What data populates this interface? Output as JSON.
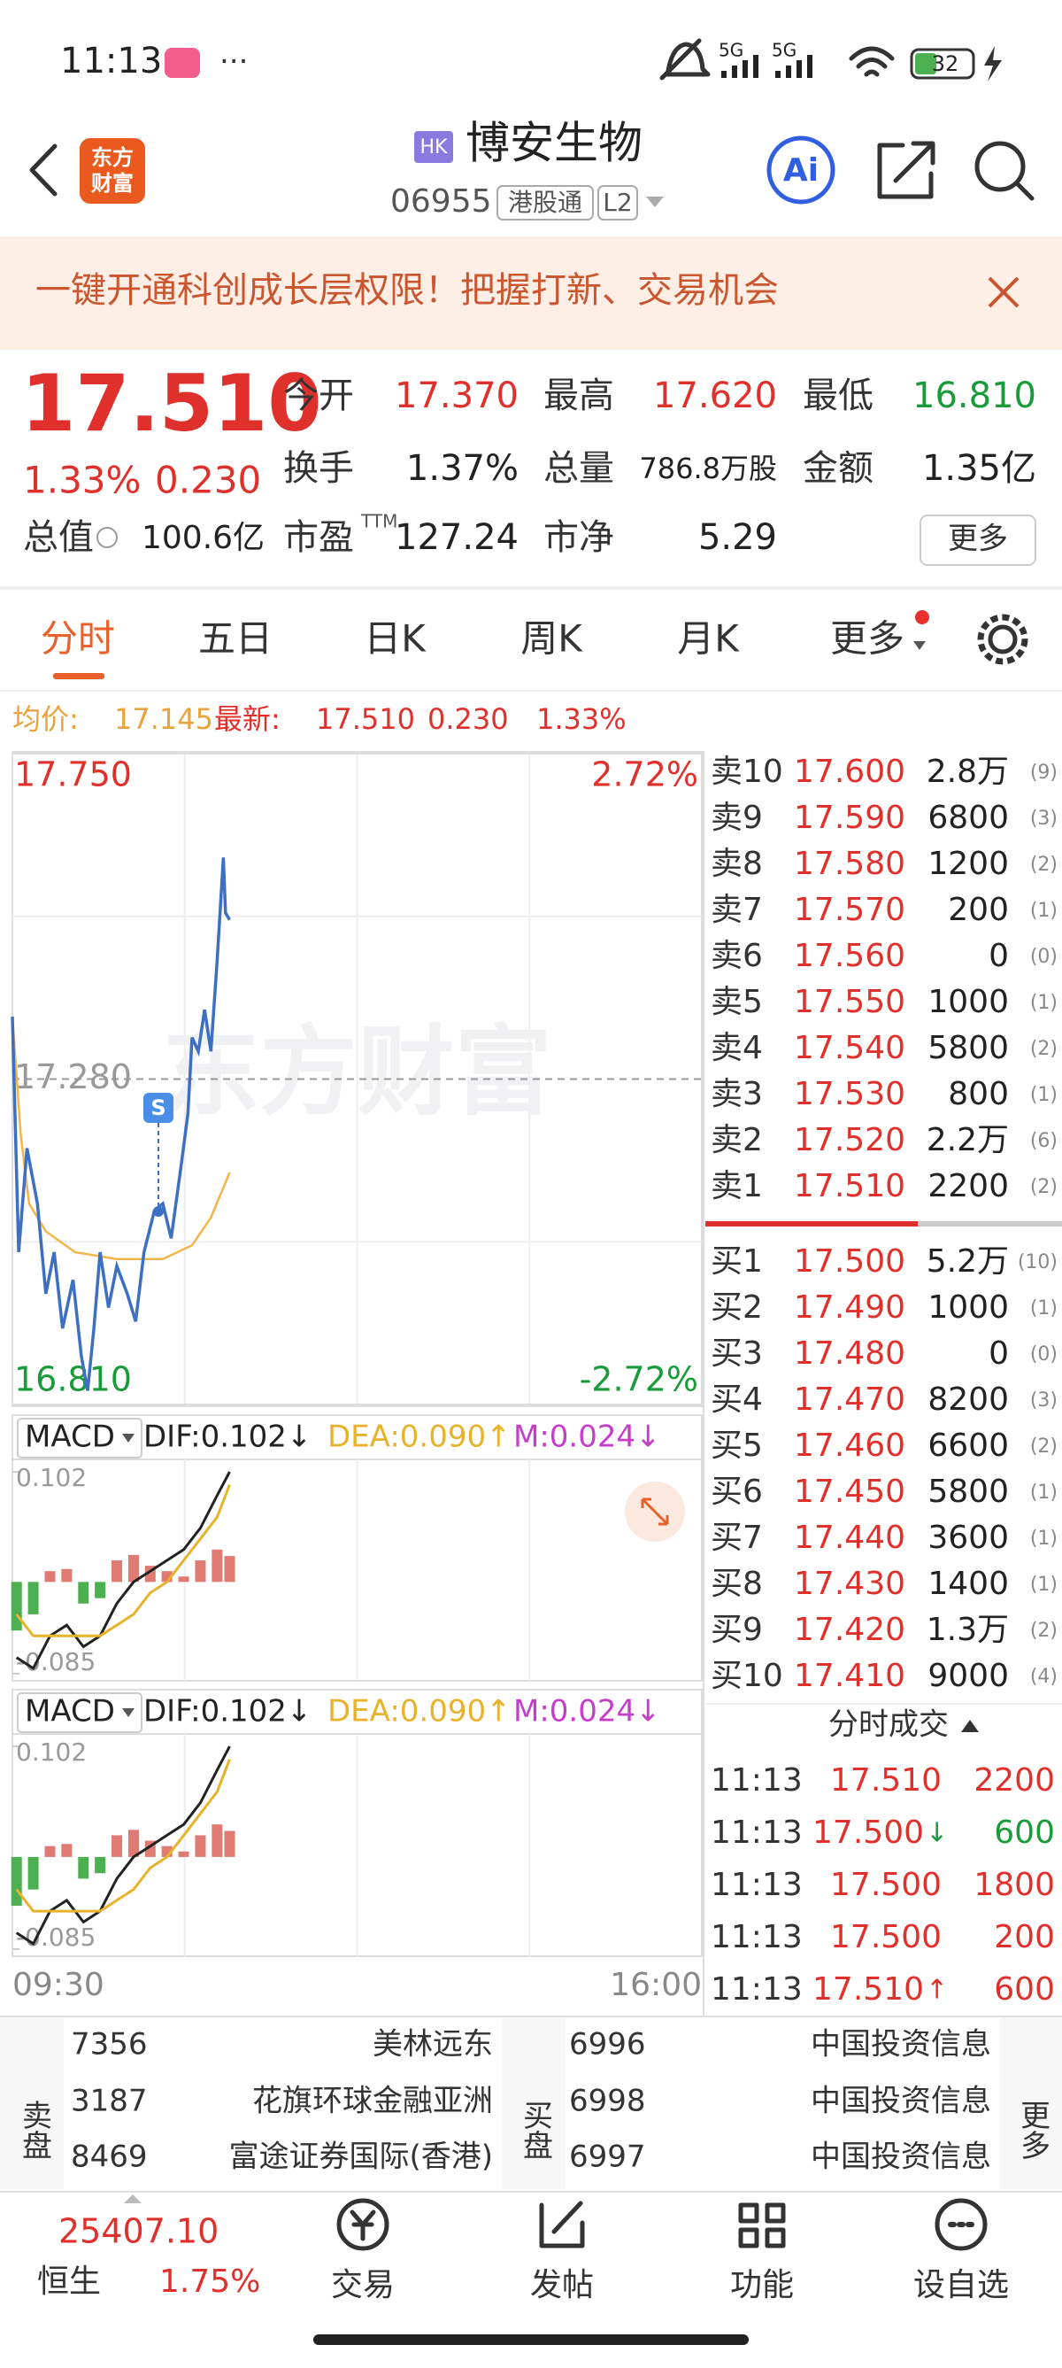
{
  "status_bar": {
    "time": "11:13",
    "network": [
      "5G",
      "5G"
    ],
    "battery": "32"
  },
  "header": {
    "logo": [
      "东方",
      "财富"
    ],
    "market_badge": "HK",
    "title": "博安生物",
    "code": "06955",
    "connect": "港股通",
    "level": "L2",
    "ai": "Ai"
  },
  "banner": {
    "text": "一键开通科创成长层权限！把握打新、交易机会"
  },
  "quote": {
    "price": "17.510",
    "change_pct": "1.33%",
    "change": "0.230",
    "total_label": "总值",
    "total": "100.6亿",
    "ttm": "TTM",
    "more": "更多",
    "stats": [
      {
        "label": "今开",
        "value": "17.370",
        "color": "#e0302c"
      },
      {
        "label": "最高",
        "value": "17.620",
        "color": "#e0302c"
      },
      {
        "label": "最低",
        "value": "16.810",
        "color": "#1a9b3a"
      },
      {
        "label": "换手",
        "value": "1.37%",
        "color": "#222"
      },
      {
        "label": "总量",
        "value": "786.8万股",
        "color": "#222"
      },
      {
        "label": "金额",
        "value": "1.35亿",
        "color": "#222"
      },
      {
        "label": "市盈",
        "value": "127.24",
        "color": "#222"
      },
      {
        "label": "市净",
        "value": "5.29",
        "color": "#222"
      }
    ]
  },
  "tabs": {
    "items": [
      "分时",
      "五日",
      "日K",
      "周K",
      "月K",
      "更多"
    ],
    "active": 0
  },
  "info": {
    "avg_label": "均价:",
    "avg": "17.145",
    "last_label": "最新:",
    "last": "17.510",
    "change": "0.230",
    "change_pct": "1.33%"
  },
  "chart_data": [
    {
      "type": "line",
      "watermark": "东方财富",
      "marker": "S",
      "xlim": [
        0,
        330
      ],
      "xticks": [
        {
          "value": 0,
          "label": "09:30"
        },
        {
          "value": 330,
          "label": "16:00"
        }
      ],
      "ylim": [
        16.81,
        17.75
      ],
      "yticks": [
        {
          "value": 17.75,
          "label": "17.750"
        },
        {
          "value": 17.28,
          "label": "17.280"
        },
        {
          "value": 16.81,
          "label": "16.810"
        }
      ],
      "y2lim": [
        -2.72,
        2.72
      ],
      "y2ticks": [
        {
          "value": 2.72,
          "label": "2.72%"
        },
        {
          "value": -2.72,
          "label": "-2.72%"
        }
      ],
      "series": [
        {
          "color": "#3d6fc2",
          "x": [
            0,
            3,
            7,
            12,
            16,
            20,
            24,
            29,
            33,
            36,
            39,
            42,
            46,
            50,
            55,
            59,
            63,
            68,
            72,
            76,
            81,
            84,
            86,
            89,
            92,
            95,
            98,
            101,
            102,
            104
          ],
          "values": [
            17.37,
            17.03,
            17.18,
            17.1,
            16.97,
            17.03,
            16.92,
            16.99,
            16.88,
            16.83,
            16.92,
            17.03,
            16.95,
            17.01,
            16.97,
            16.93,
            17.03,
            17.09,
            17.1,
            17.05,
            17.16,
            17.23,
            17.34,
            17.32,
            17.38,
            17.32,
            17.45,
            17.6,
            17.52,
            17.51
          ]
        },
        {
          "color": "#f2b54a",
          "x": [
            0,
            4,
            8,
            16,
            30,
            50,
            72,
            86,
            95,
            104
          ],
          "values": [
            17.37,
            17.2,
            17.1,
            17.06,
            17.03,
            17.02,
            17.02,
            17.04,
            17.08,
            17.145
          ]
        }
      ]
    },
    {
      "type": "bar",
      "indicator": "MACD",
      "labels": [
        "DIF:0.102↓",
        "DEA:0.090↑",
        "M:0.024↓"
      ],
      "xlim": [
        0,
        330
      ],
      "ylim": [
        -0.085,
        0.102
      ],
      "yticks": [
        0.102,
        -0.085
      ],
      "up_color": "#e07b74",
      "down_color": "#4caf50",
      "x": [
        2,
        10,
        18,
        26,
        34,
        42,
        50,
        58,
        66,
        74,
        82,
        90,
        98,
        104
      ],
      "series": [
        {
          "type": "bar",
          "values": [
            -0.045,
            -0.03,
            0.01,
            0.012,
            -0.02,
            -0.015,
            0.02,
            0.025,
            0.015,
            0.01,
            0.005,
            0.02,
            0.03,
            0.024
          ]
        },
        {
          "type": "line",
          "color": "#222",
          "values": [
            -0.07,
            -0.08,
            -0.05,
            -0.04,
            -0.06,
            -0.05,
            -0.02,
            0.0,
            0.01,
            0.02,
            0.03,
            0.05,
            0.08,
            0.102
          ]
        },
        {
          "type": "line",
          "color": "#e8b22a",
          "values": [
            -0.03,
            -0.05,
            -0.05,
            -0.05,
            -0.05,
            -0.05,
            -0.04,
            -0.03,
            -0.01,
            0.0,
            0.02,
            0.04,
            0.06,
            0.09
          ]
        }
      ]
    },
    {
      "type": "bar",
      "indicator": "MACD",
      "labels": [
        "DIF:0.102↓",
        "DEA:0.090↑",
        "M:0.024↓"
      ],
      "xlim": [
        0,
        330
      ],
      "ylim": [
        -0.085,
        0.102
      ],
      "yticks": [
        0.102,
        -0.085
      ],
      "up_color": "#e07b74",
      "down_color": "#4caf50",
      "x": [
        2,
        10,
        18,
        26,
        34,
        42,
        50,
        58,
        66,
        74,
        82,
        90,
        98,
        104
      ],
      "series": [
        {
          "type": "bar",
          "values": [
            -0.045,
            -0.03,
            0.01,
            0.012,
            -0.02,
            -0.015,
            0.02,
            0.025,
            0.015,
            0.01,
            0.005,
            0.02,
            0.03,
            0.024
          ]
        },
        {
          "type": "line",
          "color": "#222",
          "values": [
            -0.07,
            -0.08,
            -0.05,
            -0.04,
            -0.06,
            -0.05,
            -0.02,
            0.0,
            0.01,
            0.02,
            0.03,
            0.05,
            0.08,
            0.102
          ]
        },
        {
          "type": "line",
          "color": "#e8b22a",
          "values": [
            -0.03,
            -0.05,
            -0.05,
            -0.05,
            -0.05,
            -0.05,
            -0.04,
            -0.03,
            -0.01,
            0.0,
            0.02,
            0.04,
            0.06,
            0.09
          ]
        }
      ]
    }
  ],
  "order_book": {
    "asks": [
      {
        "label": "卖10",
        "price": "17.600",
        "volume": "2.8万",
        "count": "(9)"
      },
      {
        "label": "卖9",
        "price": "17.590",
        "volume": "6800",
        "count": "(3)"
      },
      {
        "label": "卖8",
        "price": "17.580",
        "volume": "1200",
        "count": "(2)"
      },
      {
        "label": "卖7",
        "price": "17.570",
        "volume": "200",
        "count": "(1)"
      },
      {
        "label": "卖6",
        "price": "17.560",
        "volume": "0",
        "count": "(0)"
      },
      {
        "label": "卖5",
        "price": "17.550",
        "volume": "1000",
        "count": "(1)"
      },
      {
        "label": "卖4",
        "price": "17.540",
        "volume": "5800",
        "count": "(2)"
      },
      {
        "label": "卖3",
        "price": "17.530",
        "volume": "800",
        "count": "(1)"
      },
      {
        "label": "卖2",
        "price": "17.520",
        "volume": "2.2万",
        "count": "(6)"
      },
      {
        "label": "卖1",
        "price": "17.510",
        "volume": "2200",
        "count": "(2)"
      }
    ],
    "bids": [
      {
        "label": "买1",
        "price": "17.500",
        "volume": "5.2万",
        "count": "(10)"
      },
      {
        "label": "买2",
        "price": "17.490",
        "volume": "1000",
        "count": "(1)"
      },
      {
        "label": "买3",
        "price": "17.480",
        "volume": "0",
        "count": "(0)"
      },
      {
        "label": "买4",
        "price": "17.470",
        "volume": "8200",
        "count": "(3)"
      },
      {
        "label": "买5",
        "price": "17.460",
        "volume": "6600",
        "count": "(2)"
      },
      {
        "label": "买6",
        "price": "17.450",
        "volume": "5800",
        "count": "(1)"
      },
      {
        "label": "买7",
        "price": "17.440",
        "volume": "3600",
        "count": "(1)"
      },
      {
        "label": "买8",
        "price": "17.430",
        "volume": "1400",
        "count": "(1)"
      },
      {
        "label": "买9",
        "price": "17.420",
        "volume": "1.3万",
        "count": "(2)"
      },
      {
        "label": "买10",
        "price": "17.410",
        "volume": "9000",
        "count": "(4)"
      }
    ]
  },
  "trades": {
    "title": "分时成交",
    "rows": [
      {
        "time": "11:13",
        "price": "17.510",
        "volume": "2200",
        "volume_color": "#e0302c"
      },
      {
        "time": "11:13",
        "price": "17.500",
        "arrow": "↓",
        "arrow_color": "#1a9b3a",
        "volume": "600",
        "volume_color": "#1a9b3a"
      },
      {
        "time": "11:13",
        "price": "17.500",
        "volume": "1800",
        "volume_color": "#e0302c"
      },
      {
        "time": "11:13",
        "price": "17.500",
        "volume": "200",
        "volume_color": "#e0302c"
      },
      {
        "time": "11:13",
        "price": "17.510",
        "arrow": "↑",
        "arrow_color": "#e0302c",
        "volume": "600",
        "volume_color": "#e0302c"
      }
    ]
  },
  "brokers": {
    "sell_label": "卖盘",
    "buy_label": "买盘",
    "more": "更多",
    "sells": [
      {
        "code": "7356",
        "name": "美林远东"
      },
      {
        "code": "3187",
        "name": "花旗环球金融亚洲"
      },
      {
        "code": "8469",
        "name": "富途证券国际(香港)"
      }
    ],
    "buys": [
      {
        "code": "6996",
        "name": "中国投资信息"
      },
      {
        "code": "6998",
        "name": "中国投资信息"
      },
      {
        "code": "6997",
        "name": "中国投资信息"
      }
    ]
  },
  "bottom_nav": {
    "index_value": "25407.10",
    "index_name": "恒生",
    "index_pct": "1.75%",
    "items": [
      "交易",
      "发帖",
      "功能",
      "设自选"
    ]
  }
}
